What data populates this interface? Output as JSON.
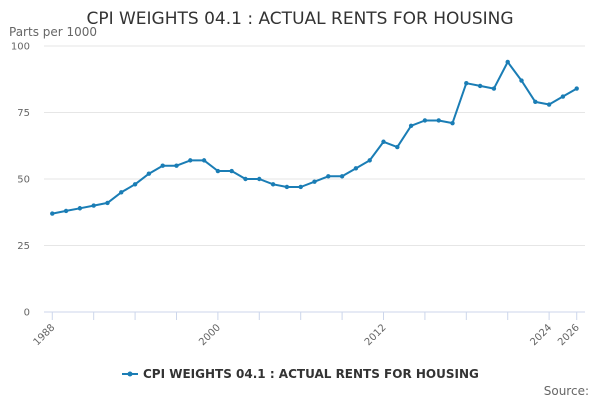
{
  "chart_data": {
    "type": "line",
    "title": "CPI WEIGHTS 04.1 : ACTUAL RENTS FOR HOUSING",
    "ylabel": "Parts per 1000",
    "xlabel": "",
    "xlim": [
      1988,
      2026
    ],
    "ylim": [
      0,
      100
    ],
    "x_ticks": [
      1988,
      1991,
      1994,
      1997,
      2000,
      2003,
      2006,
      2009,
      2012,
      2015,
      2018,
      2021,
      2024,
      2026
    ],
    "x_tick_labels": [
      {
        "value": 1988,
        "label": "1988"
      },
      {
        "value": 2000,
        "label": "2000"
      },
      {
        "value": 2012,
        "label": "2012"
      },
      {
        "value": 2024,
        "label": "2024"
      },
      {
        "value": 2026,
        "label": "2026"
      }
    ],
    "y_ticks": [
      {
        "value": 0,
        "label": "0"
      },
      {
        "value": 25,
        "label": "25"
      },
      {
        "value": 50,
        "label": "50"
      },
      {
        "value": 75,
        "label": "75"
      },
      {
        "value": 100,
        "label": "100"
      }
    ],
    "grid": true,
    "legend_position": "bottom-center",
    "series": [
      {
        "name": "CPI WEIGHTS 04.1 : ACTUAL RENTS FOR HOUSING",
        "color": "#1a7db5",
        "x": [
          1988,
          1989,
          1990,
          1991,
          1992,
          1993,
          1994,
          1995,
          1996,
          1997,
          1998,
          1999,
          2000,
          2001,
          2002,
          2003,
          2004,
          2005,
          2006,
          2007,
          2008,
          2009,
          2010,
          2011,
          2012,
          2013,
          2014,
          2015,
          2016,
          2017,
          2018,
          2019,
          2020,
          2021,
          2022,
          2023,
          2024,
          2025,
          2026
        ],
        "values": [
          37,
          38,
          39,
          40,
          41,
          45,
          48,
          52,
          55,
          55,
          57,
          57,
          53,
          53,
          50,
          50,
          48,
          47,
          47,
          49,
          51,
          51,
          54,
          57,
          64,
          62,
          70,
          72,
          72,
          71,
          86,
          85,
          84,
          94,
          87,
          79,
          78,
          81,
          84
        ]
      }
    ]
  },
  "source_label": "Source:"
}
